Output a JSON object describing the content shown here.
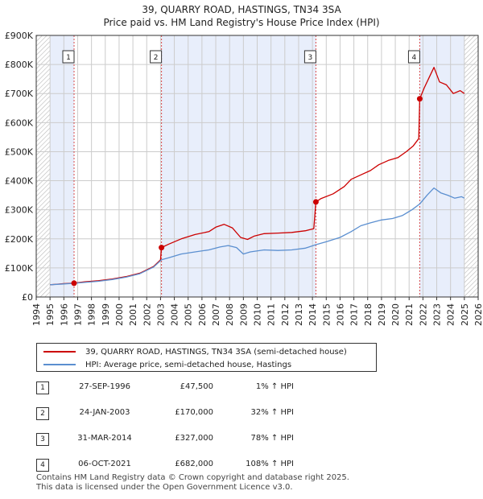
{
  "title_line1": "39, QUARRY ROAD, HASTINGS, TN34 3SA",
  "title_line2": "Price paid vs. HM Land Registry's House Price Index (HPI)",
  "legend": {
    "property": "39, QUARRY ROAD, HASTINGS, TN34 3SA (semi-detached house)",
    "hpi": "HPI: Average price, semi-detached house, Hastings"
  },
  "sales": [
    {
      "num": "1",
      "date": "27-SEP-1996",
      "price": "£47,500",
      "hpi": "1% ↑ HPI"
    },
    {
      "num": "2",
      "date": "24-JAN-2003",
      "price": "£170,000",
      "hpi": "32% ↑ HPI"
    },
    {
      "num": "3",
      "date": "31-MAR-2014",
      "price": "£327,000",
      "hpi": "78% ↑ HPI"
    },
    {
      "num": "4",
      "date": "06-OCT-2021",
      "price": "£682,000",
      "hpi": "108% ↑ HPI"
    }
  ],
  "footer": {
    "line1": "Contains HM Land Registry data © Crown copyright and database right 2025.",
    "line2": "This data is licensed under the Open Government Licence v3.0."
  },
  "colors": {
    "property_line": "#cc0000",
    "hpi_line": "#5b8fd0",
    "band": "#e8eefb",
    "grid": "#cccccc"
  },
  "chart_data": {
    "type": "line",
    "title": "39, QUARRY ROAD, HASTINGS, TN34 3SA — Price paid vs. HM Land Registry's House Price Index (HPI)",
    "xlabel": "",
    "ylabel": "",
    "xlim": [
      1994,
      2026
    ],
    "ylim": [
      0,
      900000
    ],
    "x_ticks": [
      1994,
      1995,
      1996,
      1997,
      1998,
      1999,
      2000,
      2001,
      2002,
      2003,
      2004,
      2005,
      2006,
      2007,
      2008,
      2009,
      2010,
      2011,
      2012,
      2013,
      2014,
      2015,
      2016,
      2017,
      2018,
      2019,
      2020,
      2021,
      2022,
      2023,
      2024,
      2025,
      2026
    ],
    "y_ticks": [
      {
        "value": 0,
        "label": "£0"
      },
      {
        "value": 100000,
        "label": "£100K"
      },
      {
        "value": 200000,
        "label": "£200K"
      },
      {
        "value": 300000,
        "label": "£300K"
      },
      {
        "value": 400000,
        "label": "£400K"
      },
      {
        "value": 500000,
        "label": "£500K"
      },
      {
        "value": 600000,
        "label": "£600K"
      },
      {
        "value": 700000,
        "label": "£700K"
      },
      {
        "value": 800000,
        "label": "£800K"
      },
      {
        "value": 900000,
        "label": "£900K"
      }
    ],
    "shaded_ranges": [
      [
        1995.0,
        1996.74
      ],
      [
        2003.07,
        2014.25
      ],
      [
        2021.77,
        2025.0
      ]
    ],
    "hatched_ranges": [
      [
        1994.0,
        1995.0
      ],
      [
        2025.0,
        2026.0
      ]
    ],
    "grid": true,
    "series": [
      {
        "name": "39, QUARRY ROAD, HASTINGS, TN34 3SA (semi-detached house)",
        "color": "#cc0000",
        "points": [
          [
            1995.0,
            42000
          ],
          [
            1995.5,
            44000
          ],
          [
            1996.0,
            46000
          ],
          [
            1996.74,
            47500
          ],
          [
            1997.5,
            52000
          ],
          [
            1998.5,
            56000
          ],
          [
            1999.5,
            62000
          ],
          [
            2000.5,
            70000
          ],
          [
            2001.5,
            82000
          ],
          [
            2002.5,
            105000
          ],
          [
            2003.0,
            128000
          ],
          [
            2003.07,
            170000
          ],
          [
            2003.6,
            182000
          ],
          [
            2004.5,
            200000
          ],
          [
            2005.5,
            215000
          ],
          [
            2006.5,
            225000
          ],
          [
            2007.0,
            240000
          ],
          [
            2007.6,
            250000
          ],
          [
            2008.2,
            238000
          ],
          [
            2008.8,
            205000
          ],
          [
            2009.3,
            198000
          ],
          [
            2009.8,
            210000
          ],
          [
            2010.5,
            218000
          ],
          [
            2011.5,
            220000
          ],
          [
            2012.5,
            222000
          ],
          [
            2013.5,
            228000
          ],
          [
            2014.1,
            235000
          ],
          [
            2014.25,
            327000
          ],
          [
            2014.6,
            338000
          ],
          [
            2015.5,
            355000
          ],
          [
            2016.3,
            380000
          ],
          [
            2016.8,
            405000
          ],
          [
            2017.5,
            420000
          ],
          [
            2018.2,
            435000
          ],
          [
            2018.8,
            455000
          ],
          [
            2019.5,
            470000
          ],
          [
            2020.2,
            480000
          ],
          [
            2020.8,
            500000
          ],
          [
            2021.3,
            520000
          ],
          [
            2021.7,
            545000
          ],
          [
            2021.77,
            682000
          ],
          [
            2022.1,
            720000
          ],
          [
            2022.4,
            750000
          ],
          [
            2022.8,
            790000
          ],
          [
            2023.2,
            740000
          ],
          [
            2023.7,
            730000
          ],
          [
            2024.2,
            700000
          ],
          [
            2024.7,
            710000
          ],
          [
            2025.0,
            700000
          ]
        ]
      },
      {
        "name": "HPI: Average price, semi-detached house, Hastings",
        "color": "#5b8fd0",
        "points": [
          [
            1995.0,
            42000
          ],
          [
            1996.0,
            45000
          ],
          [
            1996.74,
            47000
          ],
          [
            1997.5,
            50000
          ],
          [
            1998.5,
            54000
          ],
          [
            1999.5,
            60000
          ],
          [
            2000.5,
            68000
          ],
          [
            2001.5,
            80000
          ],
          [
            2002.5,
            103000
          ],
          [
            2003.07,
            128000
          ],
          [
            2003.6,
            135000
          ],
          [
            2004.5,
            148000
          ],
          [
            2005.5,
            155000
          ],
          [
            2006.5,
            162000
          ],
          [
            2007.3,
            172000
          ],
          [
            2007.9,
            177000
          ],
          [
            2008.5,
            170000
          ],
          [
            2009.0,
            148000
          ],
          [
            2009.5,
            155000
          ],
          [
            2010.5,
            162000
          ],
          [
            2011.5,
            160000
          ],
          [
            2012.5,
            162000
          ],
          [
            2013.5,
            168000
          ],
          [
            2014.25,
            180000
          ],
          [
            2015.0,
            190000
          ],
          [
            2016.0,
            205000
          ],
          [
            2016.8,
            225000
          ],
          [
            2017.5,
            245000
          ],
          [
            2018.2,
            255000
          ],
          [
            2019.0,
            265000
          ],
          [
            2019.8,
            270000
          ],
          [
            2020.5,
            280000
          ],
          [
            2021.2,
            300000
          ],
          [
            2021.77,
            320000
          ],
          [
            2022.3,
            350000
          ],
          [
            2022.8,
            375000
          ],
          [
            2023.3,
            358000
          ],
          [
            2023.8,
            350000
          ],
          [
            2024.3,
            340000
          ],
          [
            2024.8,
            345000
          ],
          [
            2025.0,
            340000
          ]
        ]
      }
    ],
    "annotations": [
      {
        "label": "1",
        "x": 1996.74,
        "y": 47500
      },
      {
        "label": "2",
        "x": 2003.07,
        "y": 170000
      },
      {
        "label": "3",
        "x": 2014.25,
        "y": 327000
      },
      {
        "label": "4",
        "x": 2021.77,
        "y": 682000
      }
    ]
  }
}
